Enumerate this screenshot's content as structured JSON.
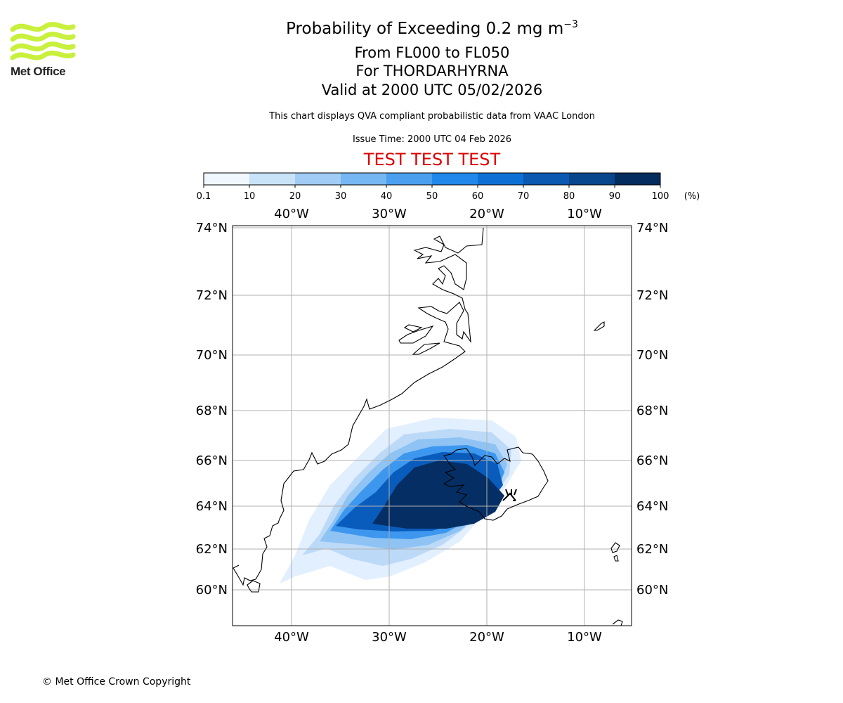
{
  "branding": {
    "logo_text": "Met Office",
    "logo_color": "#c8f03c",
    "copyright": "© Met Office Crown Copyright"
  },
  "titles": {
    "main_prefix": "Probability of Exceeding 0.2 mg m",
    "main_exponent": "−3",
    "flight_levels": "From FL000 to FL050",
    "volcano": "For THORDARHYRNA",
    "valid": "Valid at 2000 UTC 05/02/2026",
    "description": "This chart displays QVA compliant probabilistic data from VAAC London",
    "issue": "Issue Time: 2000 UTC 04 Feb 2026",
    "test_banner": "TEST TEST TEST",
    "test_color": "#dd0000"
  },
  "legend": {
    "ticks": [
      "0.1",
      "10",
      "20",
      "30",
      "40",
      "50",
      "60",
      "70",
      "80",
      "90",
      "100"
    ],
    "unit": "(%)",
    "colors": [
      "#f0f7ff",
      "#c8e2f8",
      "#a1ccf5",
      "#76b6f2",
      "#4aa0ef",
      "#2188eb",
      "#0e70d4",
      "#0a58b0",
      "#08468c",
      "#042c5c"
    ]
  },
  "map": {
    "lon_labels": [
      "40°W",
      "30°W",
      "20°W",
      "10°W"
    ],
    "lon_values": [
      -40,
      -30,
      -20,
      -10
    ],
    "lat_labels": [
      "74°N",
      "72°N",
      "70°N",
      "68°N",
      "66°N",
      "64°N",
      "62°N",
      "60°N"
    ],
    "lat_values": [
      74,
      72,
      70,
      68,
      66,
      64,
      62,
      60
    ],
    "volcano_symbol": "volcano-marker",
    "grid_color": "#b0b0b0"
  }
}
